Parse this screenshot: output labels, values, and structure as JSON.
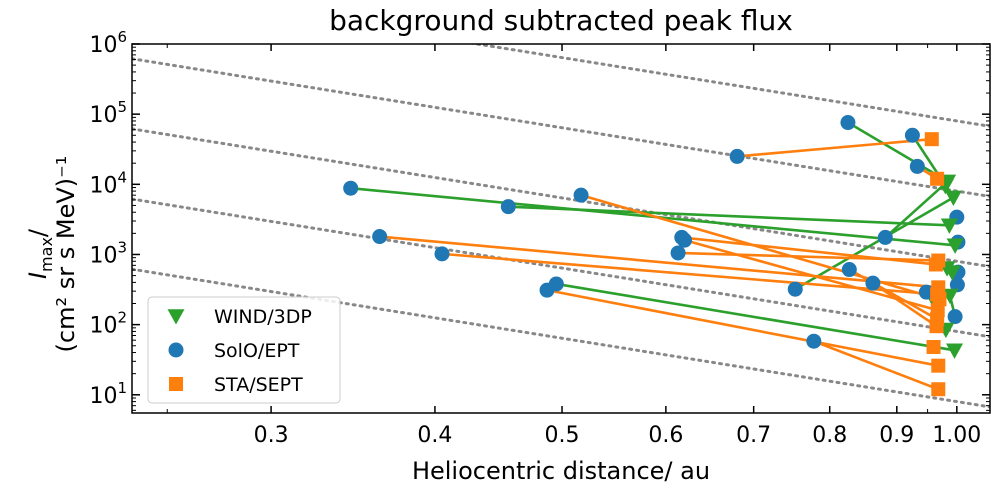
{
  "chart_data": {
    "type": "scatter",
    "title": "background subtracted peak flux",
    "xlabel": "Heliocentric distance/ au",
    "ylabel": {
      "line1_prefix": "I",
      "line1_sub": "max",
      "line1_suffix": "/",
      "line2": "(cm² sr s MeV)⁻¹"
    },
    "xscale": "log",
    "yscale": "log",
    "xlim": [
      0.235,
      1.06
    ],
    "ylim": [
      5.5,
      1000000
    ],
    "xticks": [
      {
        "value": 0.3,
        "label": "0.3"
      },
      {
        "value": 0.4,
        "label": "0.4"
      },
      {
        "value": 0.5,
        "label": "0.5"
      },
      {
        "value": 0.6,
        "label": "0.6"
      },
      {
        "value": 0.7,
        "label": "0.7"
      },
      {
        "value": 0.8,
        "label": "0.8"
      },
      {
        "value": 0.9,
        "label": "0.9"
      },
      {
        "value": 1.0,
        "label": "1.00"
      }
    ],
    "yticks": [
      {
        "value": 10,
        "base": "10",
        "exp": "1"
      },
      {
        "value": 100,
        "base": "10",
        "exp": "2"
      },
      {
        "value": 1000,
        "base": "10",
        "exp": "3"
      },
      {
        "value": 10000,
        "base": "10",
        "exp": "4"
      },
      {
        "value": 100000,
        "base": "10",
        "exp": "5"
      },
      {
        "value": 1000000,
        "base": "10",
        "exp": "6"
      }
    ],
    "reference_lines": {
      "style": "dotted",
      "color": "#888888",
      "slope_power": -3,
      "values_at_1au": [
        8,
        80,
        800,
        8000,
        80000
      ]
    },
    "legend": {
      "position": "bottom-left",
      "entries": [
        {
          "name": "WIND/3DP",
          "marker": "triangle-down",
          "color": "#2ca02c"
        },
        {
          "name": "SolO/EPT",
          "marker": "circle",
          "color": "#1f77b4"
        },
        {
          "name": "STA/SEPT",
          "marker": "square",
          "color": "#ff7f0e"
        }
      ]
    },
    "series": [
      {
        "name": "SolO/EPT",
        "marker": "circle",
        "color": "#1f77b4",
        "points": [
          [
            0.345,
            8800
          ],
          [
            0.363,
            1800
          ],
          [
            0.405,
            1020
          ],
          [
            0.455,
            4800
          ],
          [
            0.487,
            310
          ],
          [
            0.495,
            380
          ],
          [
            0.517,
            7000
          ],
          [
            0.613,
            1050
          ],
          [
            0.617,
            1750
          ],
          [
            0.62,
            1600
          ],
          [
            0.68,
            25000
          ],
          [
            0.753,
            320
          ],
          [
            0.778,
            58
          ],
          [
            0.826,
            76000
          ],
          [
            0.828,
            610
          ],
          [
            0.863,
            390
          ],
          [
            0.882,
            1750
          ],
          [
            0.925,
            50000
          ],
          [
            0.933,
            18000
          ],
          [
            0.948,
            290
          ],
          [
            1.0,
            3400
          ],
          [
            1.002,
            1500
          ],
          [
            1.002,
            560
          ],
          [
            1.001,
            370
          ],
          [
            0.997,
            130
          ]
        ]
      },
      {
        "name": "WIND/3DP",
        "marker": "triangle-down",
        "color": "#2ca02c",
        "points": [
          [
            0.984,
            11000
          ],
          [
            0.98,
            9500
          ],
          [
            0.994,
            6500
          ],
          [
            0.987,
            2600
          ],
          [
            0.997,
            1350
          ],
          [
            0.983,
            640
          ],
          [
            0.992,
            560
          ],
          [
            0.988,
            260
          ],
          [
            0.981,
            85
          ],
          [
            0.996,
            43
          ]
        ]
      },
      {
        "name": "STA/SEPT",
        "marker": "square",
        "color": "#ff7f0e",
        "points": [
          [
            0.957,
            44000
          ],
          [
            0.966,
            12000
          ],
          [
            0.964,
            720
          ],
          [
            0.968,
            820
          ],
          [
            0.968,
            340
          ],
          [
            0.966,
            270
          ],
          [
            0.97,
            230
          ],
          [
            0.967,
            160
          ],
          [
            0.966,
            120
          ],
          [
            0.965,
            95
          ],
          [
            0.96,
            48
          ],
          [
            0.968,
            26
          ],
          [
            0.968,
            12
          ]
        ]
      }
    ],
    "connections": [
      {
        "color": "#2ca02c",
        "from": [
          0.345,
          8800
        ],
        "to": [
          0.997,
          1350
        ]
      },
      {
        "color": "#2ca02c",
        "from": [
          0.455,
          4800
        ],
        "to": [
          0.987,
          2600
        ]
      },
      {
        "color": "#2ca02c",
        "from": [
          0.495,
          380
        ],
        "to": [
          0.996,
          43
        ]
      },
      {
        "color": "#2ca02c",
        "from": [
          0.753,
          320
        ],
        "to": [
          0.994,
          6500
        ]
      },
      {
        "color": "#2ca02c",
        "from": [
          0.826,
          76000
        ],
        "to": [
          0.984,
          11000
        ]
      },
      {
        "color": "#2ca02c",
        "from": [
          0.925,
          50000
        ],
        "to": [
          0.994,
          6500
        ]
      },
      {
        "color": "#2ca02c",
        "from": [
          0.882,
          1750
        ],
        "to": [
          0.984,
          11000
        ]
      },
      {
        "color": "#2ca02c",
        "from": [
          0.948,
          290
        ],
        "to": [
          0.981,
          85
        ]
      },
      {
        "color": "#2ca02c",
        "from": [
          0.997,
          130
        ],
        "to": [
          0.988,
          260
        ]
      },
      {
        "color": "#2ca02c",
        "from": [
          1.001,
          370
        ],
        "to": [
          0.992,
          560
        ]
      },
      {
        "color": "#ff7f0e",
        "from": [
          0.68,
          25000
        ],
        "to": [
          0.957,
          44000
        ]
      },
      {
        "color": "#ff7f0e",
        "from": [
          0.363,
          1800
        ],
        "to": [
          0.968,
          340
        ]
      },
      {
        "color": "#ff7f0e",
        "from": [
          0.405,
          1020
        ],
        "to": [
          0.966,
          270
        ]
      },
      {
        "color": "#ff7f0e",
        "from": [
          0.487,
          310
        ],
        "to": [
          0.968,
          26
        ]
      },
      {
        "color": "#ff7f0e",
        "from": [
          0.517,
          7000
        ],
        "to": [
          0.97,
          230
        ]
      },
      {
        "color": "#ff7f0e",
        "from": [
          0.613,
          1050
        ],
        "to": [
          0.968,
          820
        ]
      },
      {
        "color": "#ff7f0e",
        "from": [
          0.617,
          1750
        ],
        "to": [
          0.964,
          720
        ]
      },
      {
        "color": "#ff7f0e",
        "from": [
          0.62,
          1600
        ],
        "to": [
          0.967,
          160
        ]
      },
      {
        "color": "#ff7f0e",
        "from": [
          0.778,
          58
        ],
        "to": [
          0.968,
          12
        ]
      },
      {
        "color": "#ff7f0e",
        "from": [
          0.828,
          610
        ],
        "to": [
          0.966,
          120
        ]
      },
      {
        "color": "#ff7f0e",
        "from": [
          0.863,
          390
        ],
        "to": [
          0.965,
          95
        ]
      },
      {
        "color": "#ff7f0e",
        "from": [
          0.933,
          18000
        ],
        "to": [
          0.966,
          12000
        ]
      }
    ]
  }
}
